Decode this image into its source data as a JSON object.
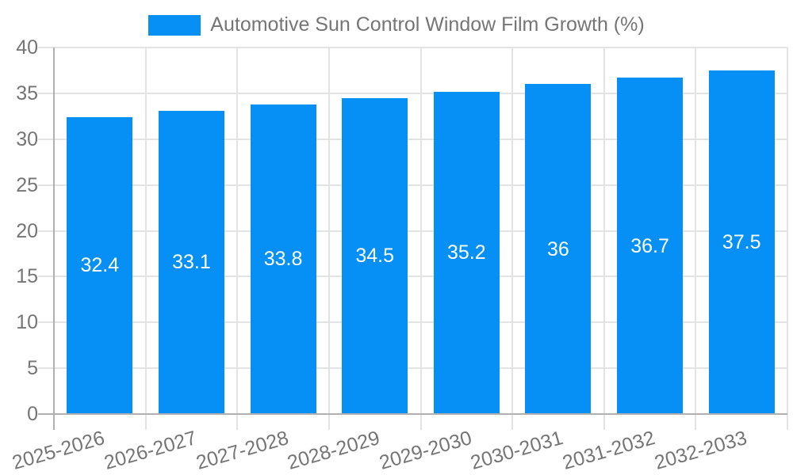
{
  "legend": {
    "label": "Automotive Sun Control Window Film Growth (%)"
  },
  "chart_data": {
    "type": "bar",
    "title": "Automotive Sun Control Window Film Growth (%)",
    "categories": [
      "2025-2026",
      "2026-2027",
      "2027-2028",
      "2028-2029",
      "2029-2030",
      "2030-2031",
      "2031-2032",
      "2032-2033"
    ],
    "values": [
      32.4,
      33.1,
      33.8,
      34.5,
      35.2,
      36,
      36.7,
      37.5
    ],
    "value_labels": [
      "32.4",
      "33.1",
      "33.8",
      "34.5",
      "35.2",
      "36",
      "36.7",
      "37.5"
    ],
    "xlabel": "",
    "ylabel": "",
    "ylim": [
      0,
      40
    ],
    "yticks": [
      0,
      5,
      10,
      15,
      20,
      25,
      30,
      35,
      40
    ],
    "ytick_labels": [
      "0",
      "5",
      "10",
      "15",
      "20",
      "25",
      "30",
      "35",
      "40"
    ],
    "grid": true,
    "legend_position": "top",
    "bar_color": "#0690F5",
    "axis_label_color": "#757575",
    "gridline_color": "#e3e3e3",
    "axis_line_color": "#b0b0b0",
    "value_label_color": "#ffffff"
  }
}
